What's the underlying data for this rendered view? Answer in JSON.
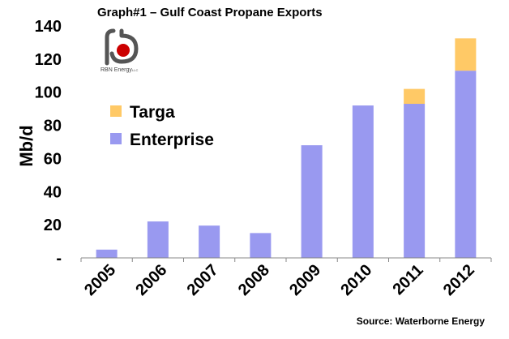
{
  "chart_data": {
    "type": "bar",
    "stacked": true,
    "title": "Graph#1 – Gulf Coast Propane Exports",
    "ylabel": "Mb/d",
    "xlabel": "",
    "ylim": [
      0,
      140
    ],
    "yticks": [
      "-",
      "20",
      "40",
      "60",
      "80",
      "100",
      "120",
      "140"
    ],
    "ytick_values": [
      0,
      20,
      40,
      60,
      80,
      100,
      120,
      140
    ],
    "categories": [
      "2005",
      "2006",
      "2007",
      "2008",
      "2009",
      "2010",
      "2011",
      "2012"
    ],
    "series": [
      {
        "name": "Enterprise",
        "color": "#9999f0",
        "values": [
          5,
          22,
          19.5,
          15,
          68,
          92,
          93,
          113
        ]
      },
      {
        "name": "Targa",
        "color": "#ffc966",
        "values": [
          0,
          0,
          0,
          0,
          0,
          0,
          9,
          19.5
        ]
      }
    ],
    "legend_placement": "upper-left-inside",
    "grid": false,
    "source": "Source: Waterborne Energy"
  },
  "logo": {
    "text": "RBN Energy",
    "suffix": "LLC",
    "mark_color": "#cc0000"
  }
}
